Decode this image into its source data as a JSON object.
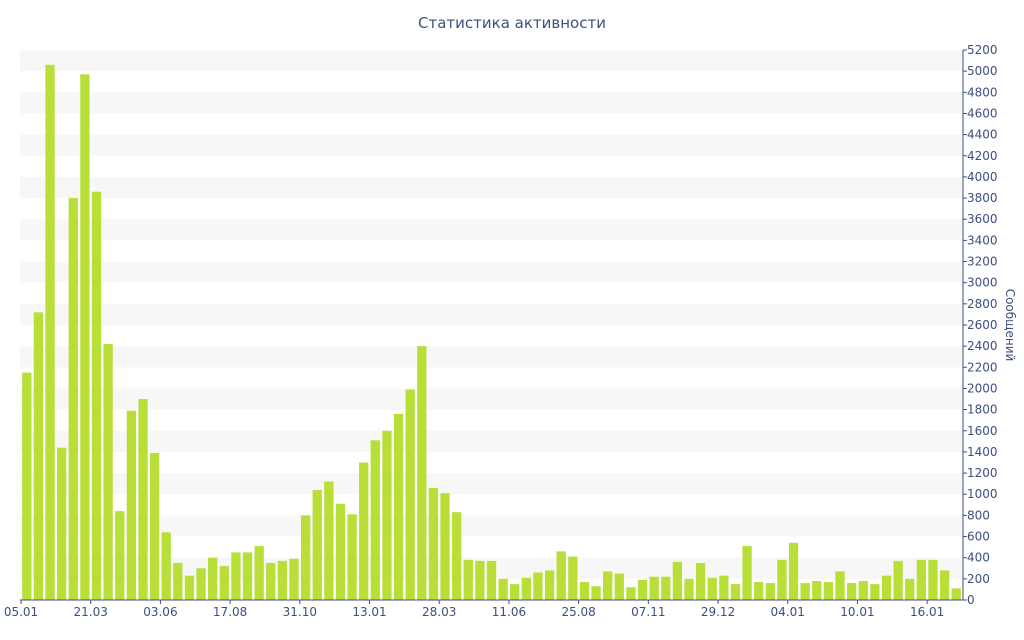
{
  "chart_data": {
    "type": "bar",
    "title": "Статистика активности",
    "ylabel": "Сообщений",
    "xlabel": "",
    "ylim": [
      0,
      5200
    ],
    "y_ticks": [
      0,
      200,
      400,
      600,
      800,
      1000,
      1200,
      1400,
      1600,
      1800,
      2000,
      2200,
      2400,
      2600,
      2800,
      3000,
      3200,
      3400,
      3600,
      3800,
      4000,
      4200,
      4400,
      4600,
      4800,
      5000,
      5200
    ],
    "x_tick_labels": [
      {
        "label": "05.01",
        "index": 0
      },
      {
        "label": "21.03",
        "index": 6
      },
      {
        "label": "03.06",
        "index": 12
      },
      {
        "label": "17.08",
        "index": 18
      },
      {
        "label": "31.10",
        "index": 24
      },
      {
        "label": "13.01",
        "index": 30
      },
      {
        "label": "28.03",
        "index": 36
      },
      {
        "label": "11.06",
        "index": 42
      },
      {
        "label": "25.08",
        "index": 48
      },
      {
        "label": "07.11",
        "index": 54
      },
      {
        "label": "29.12",
        "index": 60
      },
      {
        "label": "04.01",
        "index": 66
      },
      {
        "label": "10.01",
        "index": 72
      },
      {
        "label": "16.01",
        "index": 78
      }
    ],
    "grid": "horizontal-bands",
    "y_axis_position": "right",
    "bar_color": "#b8de38",
    "values": [
      2150,
      2720,
      5060,
      1440,
      3800,
      4970,
      3860,
      2420,
      840,
      1790,
      1900,
      1390,
      640,
      350,
      230,
      300,
      400,
      320,
      450,
      450,
      510,
      350,
      370,
      390,
      800,
      1040,
      1120,
      910,
      810,
      1300,
      1510,
      1600,
      1760,
      1990,
      2400,
      1060,
      1010,
      830,
      380,
      370,
      370,
      200,
      150,
      210,
      260,
      280,
      460,
      410,
      170,
      130,
      270,
      250,
      120,
      190,
      220,
      220,
      360,
      200,
      350,
      210,
      230,
      150,
      510,
      170,
      160,
      380,
      540,
      160,
      180,
      170,
      270,
      160,
      180,
      150,
      230,
      370,
      200,
      380,
      380,
      280,
      110
    ]
  }
}
